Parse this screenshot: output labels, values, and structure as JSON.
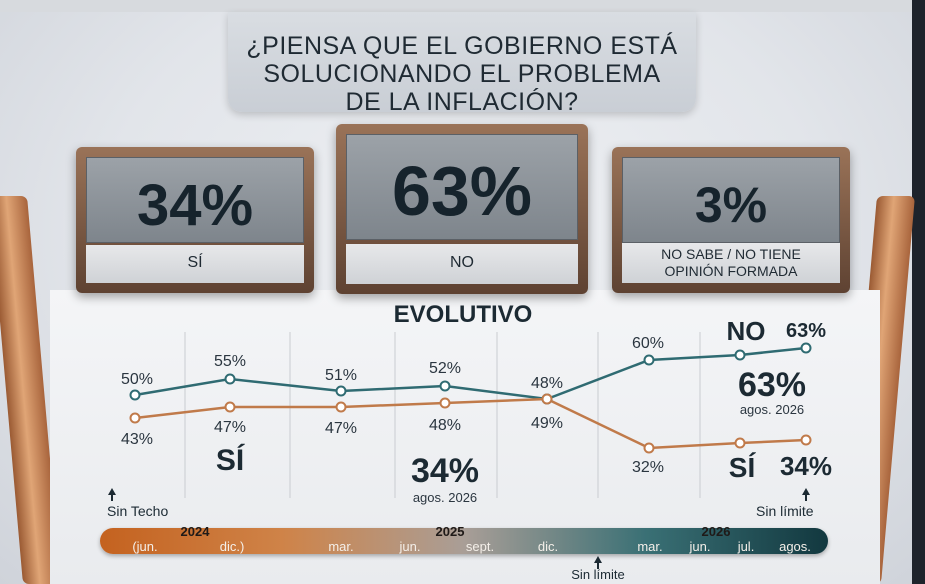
{
  "question": {
    "lines": [
      "¿PIENSA QUE EL GOBIERNO ESTÁ",
      "SOLUCIONANDO EL PROBLEMA",
      "DE LA INFLACIÓN?"
    ]
  },
  "results": {
    "si": {
      "value": "34%",
      "label": "SÍ"
    },
    "no": {
      "value": "63%",
      "label": "NO"
    },
    "ns": {
      "value": "3%",
      "label_lines": [
        "NO SABE / NO TIENE",
        "OPINIÓN FORMADA"
      ]
    }
  },
  "chart_data": {
    "type": "line",
    "title": "EVOLUTIVO",
    "x": [
      "jun. 2024",
      "dic. 2024",
      "mar. 2025",
      "jun. 2025",
      "sept./dic. 2025",
      "mar. 2026",
      "jul. 2026",
      "agos. 2026"
    ],
    "series": [
      {
        "name": "NO",
        "color": "#2f6b72",
        "values": [
          50,
          55,
          51,
          52,
          48,
          60,
          61,
          63
        ],
        "labels": [
          "50%",
          "55%",
          "51%",
          "52%",
          "48%",
          "60%",
          "",
          "63%"
        ]
      },
      {
        "name": "SÍ",
        "color": "#c07a4a",
        "values": [
          43,
          47,
          47,
          48,
          49,
          32,
          33,
          34
        ],
        "labels": [
          "43%",
          "47%",
          "47%",
          "48%",
          "49%",
          "32%",
          "",
          ""
        ]
      }
    ],
    "callouts": {
      "no_label": "NO",
      "no_end_value": "63%",
      "no_big": "63%",
      "no_big_date": "agos. 2026",
      "si_mid_label": "SÍ",
      "si_mid_big": "34%",
      "si_mid_date": "agos. 2026",
      "si_end_label": "SÍ",
      "si_end_value": "34%"
    },
    "notes": {
      "left": "Sin Techo",
      "right": "Sin límite",
      "bottom": "Sin límite"
    },
    "timeline": {
      "years": [
        "2024",
        "2025",
        "2026"
      ],
      "months": [
        "(jun.",
        "dic.)",
        "mar.",
        "jun.",
        "sept.",
        "dic.",
        "mar.",
        "jun.",
        "jul.",
        "agos."
      ]
    }
  }
}
